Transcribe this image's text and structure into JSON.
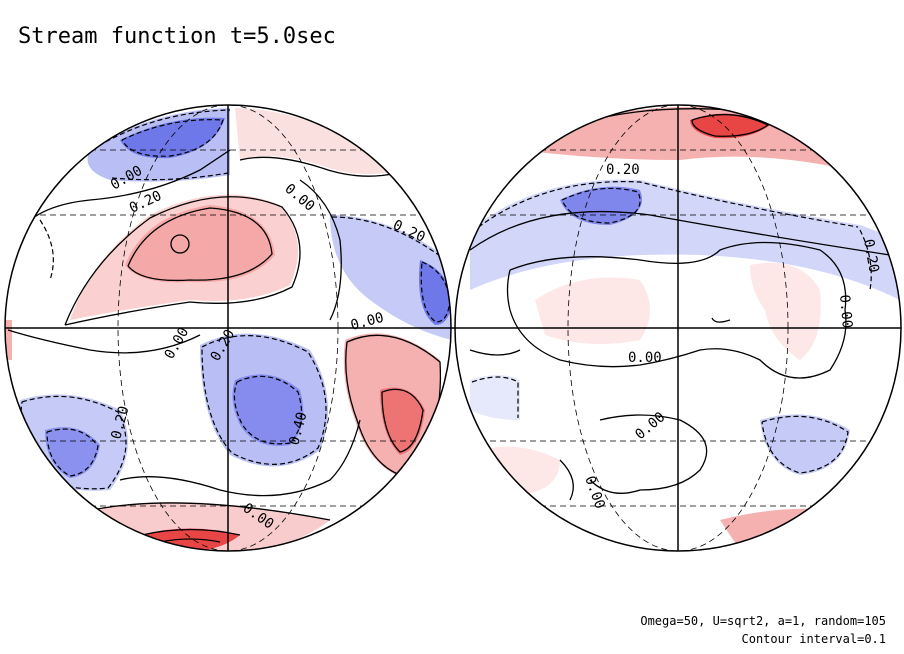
{
  "title": "Stream function t=5.0sec",
  "footer": {
    "params": "Omega=50, U=sqrt2, a=1, random=105",
    "interval": "Contour interval=0.1"
  },
  "colors": {
    "positive_light": "#fbe0e0",
    "positive_mid": "#f5b0b0",
    "positive_strong": "#ee7777",
    "negative_light": "#e6e8fb",
    "negative_mid": "#b9bff5",
    "negative_strong": "#7f86ec",
    "contour": "#000000"
  },
  "hemispheres": [
    {
      "name": "left",
      "labels": [
        "0.00",
        "0.20",
        "0.00",
        "0.20",
        "0.00",
        "0.00",
        "0.20",
        "0.20",
        "0.40",
        "0.00"
      ]
    },
    {
      "name": "right",
      "labels": [
        "0.20",
        "0.20",
        "0.00",
        "0.00",
        "0.00",
        "0.00"
      ]
    }
  ]
}
